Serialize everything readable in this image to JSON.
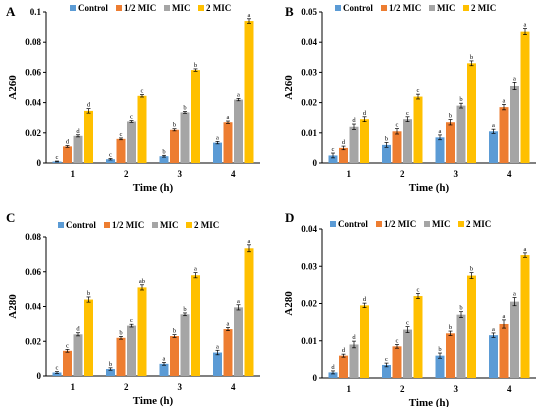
{
  "legend": [
    "Control",
    "1/2 MIC",
    "MIC",
    "2 MIC"
  ],
  "colors": {
    "Control": "#5b9bd5",
    "1/2 MIC": "#ed7d31",
    "MIC": "#a5a5a5",
    "2 MIC": "#ffc000"
  },
  "chart_data": [
    {
      "panel": "A",
      "type": "bar",
      "xlabel": "Time (h)",
      "ylabel": "A260",
      "ylim": [
        0,
        0.1
      ],
      "yticks": [
        "0",
        "0.02",
        "0.04",
        "0.06",
        "0.08",
        "0.1"
      ],
      "categories": [
        "1",
        "2",
        "3",
        "4"
      ],
      "series": [
        {
          "name": "Control",
          "values": [
            0.001,
            0.0025,
            0.0045,
            0.0135
          ],
          "errors": [
            0.0003,
            0.0005,
            0.0006,
            0.0008
          ],
          "labels": [
            "c",
            "c",
            "b",
            "a"
          ]
        },
        {
          "name": "1/2 MIC",
          "values": [
            0.011,
            0.016,
            0.022,
            0.027
          ],
          "errors": [
            0.0006,
            0.0006,
            0.0007,
            0.0008
          ],
          "labels": [
            "d",
            "c",
            "b",
            "a"
          ]
        },
        {
          "name": "MIC",
          "values": [
            0.018,
            0.0275,
            0.0335,
            0.042
          ],
          "errors": [
            0.0007,
            0.0006,
            0.0006,
            0.0008
          ],
          "labels": [
            "d",
            "c",
            "b",
            "a"
          ]
        },
        {
          "name": "2 MIC",
          "values": [
            0.0345,
            0.0445,
            0.0615,
            0.094
          ],
          "errors": [
            0.0015,
            0.0008,
            0.0008,
            0.0015
          ],
          "labels": [
            "d",
            "c",
            "b",
            "a"
          ]
        }
      ]
    },
    {
      "panel": "B",
      "type": "bar",
      "xlabel": "Time (h)",
      "ylabel": "A260",
      "ylim": [
        0,
        0.05
      ],
      "yticks": [
        "0",
        "0.01",
        "0.02",
        "0.03",
        "0.04",
        "0.05"
      ],
      "categories": [
        "1",
        "2",
        "3",
        "4"
      ],
      "series": [
        {
          "name": "Control",
          "values": [
            0.0025,
            0.006,
            0.0085,
            0.0105
          ],
          "errors": [
            0.0008,
            0.0008,
            0.0008,
            0.0007
          ],
          "labels": [
            "c",
            "b",
            "a",
            "a"
          ]
        },
        {
          "name": "1/2 MIC",
          "values": [
            0.005,
            0.0105,
            0.0135,
            0.0185
          ],
          "errors": [
            0.0006,
            0.0009,
            0.0009,
            0.0009
          ],
          "labels": [
            "d",
            "c",
            "b",
            "a"
          ]
        },
        {
          "name": "MIC",
          "values": [
            0.012,
            0.0145,
            0.019,
            0.0255
          ],
          "errors": [
            0.0009,
            0.0008,
            0.0008,
            0.0012
          ],
          "labels": [
            "d",
            "c",
            "b",
            "a"
          ]
        },
        {
          "name": "2 MIC",
          "values": [
            0.0145,
            0.022,
            0.033,
            0.0435
          ],
          "errors": [
            0.0008,
            0.0008,
            0.0008,
            0.001
          ],
          "labels": [
            "d",
            "c",
            "b",
            "a"
          ]
        }
      ]
    },
    {
      "panel": "C",
      "type": "bar",
      "xlabel": "Time (h)",
      "ylabel": "A280",
      "ylim": [
        0,
        0.08
      ],
      "yticks": [
        "0",
        "0.02",
        "0.04",
        "0.06",
        "0.08"
      ],
      "categories": [
        "1",
        "2",
        "3",
        "4"
      ],
      "series": [
        {
          "name": "Control",
          "values": [
            0.002,
            0.004,
            0.007,
            0.0135
          ],
          "errors": [
            0.0005,
            0.0007,
            0.0008,
            0.0013
          ],
          "labels": [
            "c",
            "b",
            "a",
            "a"
          ]
        },
        {
          "name": "1/2 MIC",
          "values": [
            0.0145,
            0.022,
            0.023,
            0.027
          ],
          "errors": [
            0.0008,
            0.0008,
            0.0008,
            0.0009
          ],
          "labels": [
            "c",
            "b",
            "b",
            "a"
          ]
        },
        {
          "name": "MIC",
          "values": [
            0.024,
            0.029,
            0.0355,
            0.0395
          ],
          "errors": [
            0.0009,
            0.0008,
            0.0008,
            0.0015
          ],
          "labels": [
            "d",
            "c",
            "b",
            "a"
          ]
        },
        {
          "name": "2 MIC",
          "values": [
            0.044,
            0.051,
            0.058,
            0.0735
          ],
          "errors": [
            0.0015,
            0.0015,
            0.0015,
            0.002
          ],
          "labels": [
            "b",
            "ab",
            "a",
            "a"
          ]
        }
      ]
    },
    {
      "panel": "D",
      "type": "bar",
      "xlabel": "Time (h)",
      "ylabel": "A280",
      "ylim": [
        0,
        0.04
      ],
      "yticks": [
        "0",
        "0.01",
        "0.02",
        "0.03",
        "0.04"
      ],
      "categories": [
        "1",
        "2",
        "3",
        "4"
      ],
      "series": [
        {
          "name": "Control",
          "values": [
            0.0015,
            0.0035,
            0.006,
            0.0115
          ],
          "errors": [
            0.0004,
            0.0005,
            0.0007,
            0.0006
          ],
          "labels": [
            "d",
            "c",
            "b",
            "a"
          ]
        },
        {
          "name": "1/2 MIC",
          "values": [
            0.006,
            0.0085,
            0.012,
            0.0145
          ],
          "errors": [
            0.0004,
            0.0005,
            0.0006,
            0.0011
          ],
          "labels": [
            "d",
            "c",
            "b",
            "a"
          ]
        },
        {
          "name": "MIC",
          "values": [
            0.009,
            0.013,
            0.017,
            0.0205
          ],
          "errors": [
            0.0009,
            0.0008,
            0.0008,
            0.0011
          ],
          "labels": [
            "d",
            "c",
            "b",
            "a"
          ]
        },
        {
          "name": "2 MIC",
          "values": [
            0.0195,
            0.022,
            0.0275,
            0.033
          ],
          "errors": [
            0.0006,
            0.0007,
            0.0008,
            0.0006
          ],
          "labels": [
            "d",
            "c",
            "b",
            "a"
          ]
        }
      ]
    }
  ]
}
